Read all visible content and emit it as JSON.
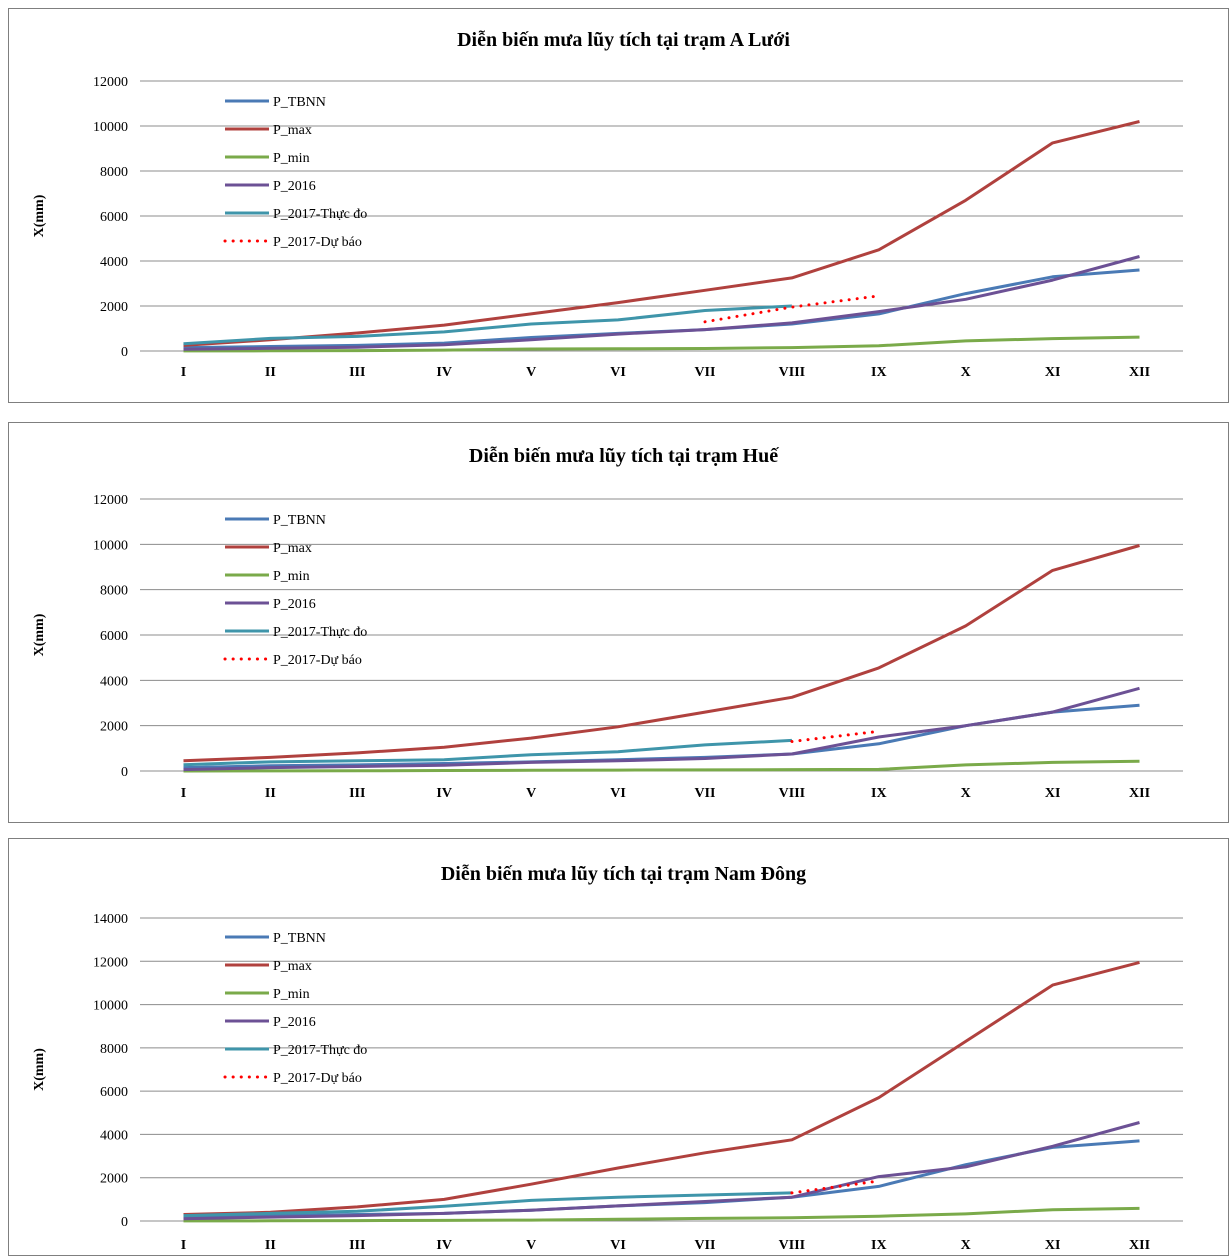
{
  "chart_data": [
    {
      "type": "line",
      "title": "Diễn biến mưa lũy tích tại trạm  A Lưới",
      "ylabel": "X(mm)",
      "xlabel": "",
      "ylim": [
        0,
        12000
      ],
      "yticks": [
        0,
        2000,
        4000,
        6000,
        8000,
        10000,
        12000
      ],
      "categories": [
        "I",
        "II",
        "III",
        "IV",
        "V",
        "VI",
        "VII",
        "VIII",
        "IX",
        "X",
        "XI",
        "XII"
      ],
      "grid": true,
      "legend_position": "top-left",
      "series": [
        {
          "name": "P_TBNN",
          "color": "#4a7ab5",
          "style": "solid",
          "values": [
            150,
            200,
            250,
            350,
            600,
            780,
            950,
            1200,
            1650,
            2550,
            3300,
            3600
          ]
        },
        {
          "name": "P_max",
          "color": "#b0413e",
          "style": "solid",
          "values": [
            250,
            500,
            800,
            1150,
            1650,
            2150,
            2700,
            3250,
            4500,
            6700,
            9250,
            10200
          ]
        },
        {
          "name": "P_min",
          "color": "#7aaa4a",
          "style": "solid",
          "values": [
            5,
            10,
            20,
            40,
            90,
            100,
            110,
            150,
            230,
            450,
            550,
            620
          ]
        },
        {
          "name": "P_2016",
          "color": "#6c5195",
          "style": "solid",
          "values": [
            80,
            120,
            170,
            280,
            500,
            750,
            950,
            1250,
            1750,
            2300,
            3150,
            4200
          ]
        },
        {
          "name": "P_2017-Thực  đo",
          "color": "#3f95aa",
          "style": "solid",
          "values": [
            320,
            560,
            650,
            850,
            1200,
            1380,
            1800,
            2000,
            null,
            null,
            null,
            null
          ]
        },
        {
          "name": "P_2017-Dự  báo",
          "color": "#ff0000",
          "style": "dotted",
          "values": [
            null,
            null,
            null,
            null,
            null,
            null,
            1300,
            1950,
            2450,
            null,
            null,
            null
          ]
        }
      ]
    },
    {
      "type": "line",
      "title": "Diễn biến mưa lũy tích tại trạm Huế",
      "ylabel": "X(mm)",
      "xlabel": "",
      "ylim": [
        0,
        12000
      ],
      "yticks": [
        0,
        2000,
        4000,
        6000,
        8000,
        10000,
        12000
      ],
      "categories": [
        "I",
        "II",
        "III",
        "IV",
        "V",
        "VI",
        "VII",
        "VIII",
        "IX",
        "X",
        "XI",
        "XII"
      ],
      "grid": true,
      "legend_position": "top-left",
      "series": [
        {
          "name": "P_TBNN",
          "color": "#4a7ab5",
          "style": "solid",
          "values": [
            150,
            230,
            270,
            330,
            400,
            500,
            600,
            750,
            1200,
            2000,
            2600,
            2900
          ]
        },
        {
          "name": "P_max",
          "color": "#b0413e",
          "style": "solid",
          "values": [
            450,
            600,
            800,
            1050,
            1450,
            1950,
            2600,
            3250,
            4550,
            6400,
            8850,
            9950
          ]
        },
        {
          "name": "P_min",
          "color": "#7aaa4a",
          "style": "solid",
          "values": [
            0,
            5,
            10,
            20,
            30,
            40,
            50,
            60,
            70,
            270,
            380,
            430
          ]
        },
        {
          "name": "P_2016",
          "color": "#6c5195",
          "style": "solid",
          "values": [
            60,
            150,
            200,
            250,
            380,
            450,
            550,
            750,
            1500,
            2000,
            2600,
            3650
          ]
        },
        {
          "name": "P_2017-Thực  đo",
          "color": "#3f95aa",
          "style": "solid",
          "values": [
            280,
            400,
            450,
            500,
            720,
            850,
            1150,
            1350,
            null,
            null,
            null,
            null
          ]
        },
        {
          "name": "P_2017-Dự  báo",
          "color": "#ff0000",
          "style": "dotted",
          "values": [
            null,
            null,
            null,
            null,
            null,
            null,
            null,
            1300,
            1750,
            null,
            null,
            null
          ]
        }
      ]
    },
    {
      "type": "line",
      "title": "Diễn biến mưa lũy tích tại trạm Nam Đông",
      "ylabel": "X(mm)",
      "xlabel": "",
      "ylim": [
        0,
        14000
      ],
      "yticks": [
        0,
        2000,
        4000,
        6000,
        8000,
        10000,
        12000,
        14000
      ],
      "categories": [
        "I",
        "II",
        "III",
        "IV",
        "V",
        "VI",
        "VII",
        "VIII",
        "IX",
        "X",
        "XI",
        "XII"
      ],
      "grid": true,
      "legend_position": "top-left",
      "series": [
        {
          "name": "P_TBNN",
          "color": "#4a7ab5",
          "style": "solid",
          "values": [
            200,
            250,
            300,
            350,
            500,
            700,
            850,
            1100,
            1600,
            2600,
            3400,
            3700
          ]
        },
        {
          "name": "P_max",
          "color": "#b0413e",
          "style": "solid",
          "values": [
            300,
            400,
            650,
            1000,
            1700,
            2450,
            3150,
            3750,
            5700,
            8300,
            10900,
            11950
          ]
        },
        {
          "name": "P_min",
          "color": "#7aaa4a",
          "style": "solid",
          "values": [
            5,
            10,
            20,
            30,
            40,
            80,
            120,
            150,
            220,
            330,
            520,
            580
          ]
        },
        {
          "name": "P_2016",
          "color": "#6c5195",
          "style": "solid",
          "values": [
            100,
            180,
            250,
            350,
            500,
            700,
            900,
            1100,
            2050,
            2500,
            3450,
            4550
          ]
        },
        {
          "name": "P_2017-Thực  đo",
          "color": "#3f95aa",
          "style": "solid",
          "values": [
            250,
            350,
            450,
            680,
            950,
            1100,
            1200,
            1300,
            null,
            null,
            null,
            null
          ]
        },
        {
          "name": "P_2017-Dự  báo",
          "color": "#ff0000",
          "style": "dotted",
          "values": [
            null,
            null,
            null,
            null,
            null,
            null,
            null,
            1300,
            1850,
            null,
            null,
            null
          ]
        }
      ]
    }
  ]
}
